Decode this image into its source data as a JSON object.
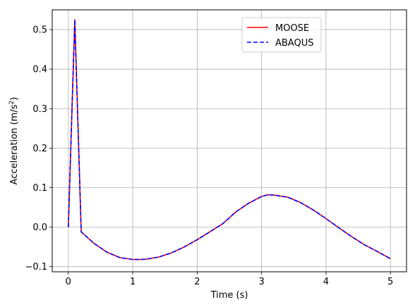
{
  "chart_data": {
    "type": "line",
    "xlabel": "Time (s)",
    "ylabel_main": "Acceleration (m/s",
    "ylabel_sup": "2",
    "ylabel_close": ")",
    "xlim": [
      -0.25,
      5.25
    ],
    "ylim": [
      -0.113,
      0.55
    ],
    "xticks": [
      0,
      1,
      2,
      3,
      4,
      5
    ],
    "xtick_labels": [
      "0",
      "1",
      "2",
      "3",
      "4",
      "5"
    ],
    "yticks": [
      -0.1,
      0.0,
      0.1,
      0.2,
      0.3,
      0.4,
      0.5
    ],
    "ytick_labels": [
      "−0.1",
      "0.0",
      "0.1",
      "0.2",
      "0.3",
      "0.4",
      "0.5"
    ],
    "grid": true,
    "legend_position": "top-center",
    "series": [
      {
        "name": "MOOSE",
        "color": "#ff0000",
        "style": "solid",
        "x": [
          0,
          0.1,
          0.2,
          0.4,
          0.6,
          0.8,
          1.0,
          1.1,
          1.2,
          1.4,
          1.6,
          1.8,
          2.0,
          2.2,
          2.4,
          2.6,
          2.8,
          3.0,
          3.1,
          3.2,
          3.4,
          3.6,
          3.8,
          4.0,
          4.2,
          4.4,
          4.6,
          4.8,
          5.0
        ],
        "y": [
          0.0,
          0.525,
          -0.012,
          -0.0413,
          -0.0634,
          -0.0771,
          -0.0818,
          -0.082,
          -0.0813,
          -0.0758,
          -0.0652,
          -0.0501,
          -0.0318,
          -0.0115,
          0.0091,
          0.0385,
          0.0607,
          0.0777,
          0.082,
          0.081,
          0.0761,
          0.0626,
          0.0437,
          0.0216,
          -0.0016,
          -0.0243,
          -0.0449,
          -0.0619,
          -0.08
        ]
      },
      {
        "name": "ABAQUS",
        "color": "#0000ff",
        "style": "dashed",
        "x": [
          0,
          0.1,
          0.2,
          0.4,
          0.6,
          0.8,
          1.0,
          1.1,
          1.2,
          1.4,
          1.6,
          1.8,
          2.0,
          2.2,
          2.4,
          2.6,
          2.8,
          3.0,
          3.1,
          3.2,
          3.4,
          3.6,
          3.8,
          4.0,
          4.2,
          4.4,
          4.6,
          4.8,
          5.0
        ],
        "y": [
          0.0,
          0.525,
          -0.012,
          -0.0413,
          -0.0634,
          -0.0771,
          -0.0818,
          -0.082,
          -0.0813,
          -0.0758,
          -0.0652,
          -0.0501,
          -0.0318,
          -0.0115,
          0.0091,
          0.0385,
          0.0607,
          0.0777,
          0.082,
          0.081,
          0.0761,
          0.0626,
          0.0437,
          0.0216,
          -0.0016,
          -0.0243,
          -0.0449,
          -0.0619,
          -0.08
        ]
      }
    ]
  }
}
